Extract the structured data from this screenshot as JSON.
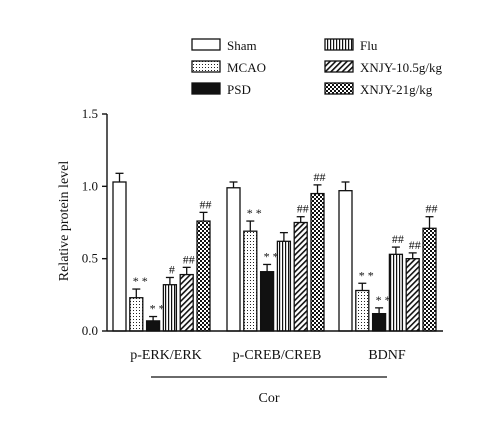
{
  "chart_data": {
    "type": "bar",
    "title": "",
    "ylabel": "Relative protein level",
    "xlabel": "",
    "group_label": "Cor",
    "ylim": [
      0,
      1.5
    ],
    "yticks": [
      "0.0",
      "0.5",
      "1.0",
      "1.5"
    ],
    "categories": [
      "p-ERK/ERK",
      "p-CREB/CREB",
      "BDNF"
    ],
    "legend": {
      "placement": "top"
    },
    "series": [
      {
        "name": "Sham",
        "pattern": "white",
        "values": [
          1.03,
          0.99,
          0.97
        ],
        "errors": [
          0.06,
          0.04,
          0.06
        ],
        "sig": [
          "",
          "",
          ""
        ]
      },
      {
        "name": "MCAO",
        "pattern": "dots",
        "values": [
          0.23,
          0.69,
          0.28
        ],
        "errors": [
          0.06,
          0.07,
          0.05
        ],
        "sig": [
          "* *",
          "* *",
          "* *"
        ]
      },
      {
        "name": "PSD",
        "pattern": "black",
        "values": [
          0.07,
          0.41,
          0.12
        ],
        "errors": [
          0.03,
          0.05,
          0.04
        ],
        "sig": [
          "* *",
          "* *",
          "* *"
        ]
      },
      {
        "name": "Flu",
        "pattern": "vlines",
        "values": [
          0.32,
          0.62,
          0.53
        ],
        "errors": [
          0.05,
          0.06,
          0.05
        ],
        "sig": [
          "#",
          "",
          "##"
        ]
      },
      {
        "name": "XNJY-10.5g/kg",
        "pattern": "diag",
        "values": [
          0.39,
          0.75,
          0.5
        ],
        "errors": [
          0.05,
          0.04,
          0.04
        ],
        "sig": [
          "##",
          "##",
          "##"
        ]
      },
      {
        "name": "XNJY-21g/kg",
        "pattern": "checker",
        "values": [
          0.76,
          0.95,
          0.71
        ],
        "errors": [
          0.06,
          0.06,
          0.08
        ],
        "sig": [
          "##",
          "##",
          "##"
        ]
      }
    ]
  }
}
